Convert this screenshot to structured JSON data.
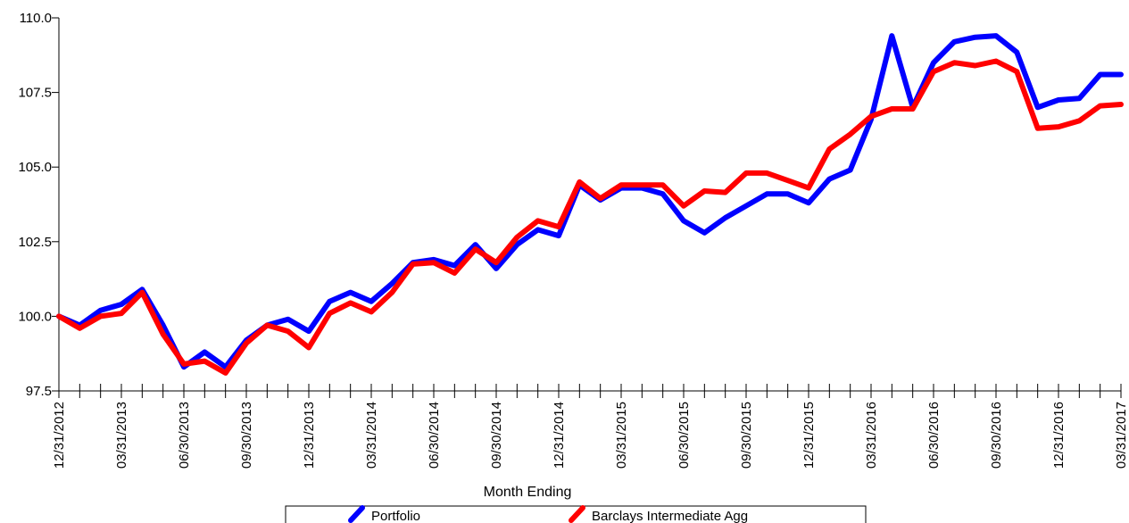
{
  "chart_data": {
    "type": "line",
    "xlabel": "Month Ending",
    "ylabel": "",
    "ylim": [
      97.5,
      110.0
    ],
    "yticks": [
      97.5,
      100.0,
      102.5,
      105.0,
      107.5,
      110.0
    ],
    "ytick_labels": [
      "97.5",
      "100.0",
      "102.5",
      "105.0",
      "107.5",
      "110.0"
    ],
    "x": [
      "12/31/2012",
      "01/31/2013",
      "02/28/2013",
      "03/31/2013",
      "04/30/2013",
      "05/31/2013",
      "06/30/2013",
      "07/31/2013",
      "08/31/2013",
      "09/30/2013",
      "10/31/2013",
      "11/30/2013",
      "12/31/2013",
      "01/31/2014",
      "02/28/2014",
      "03/31/2014",
      "04/30/2014",
      "05/31/2014",
      "06/30/2014",
      "07/31/2014",
      "08/31/2014",
      "09/30/2014",
      "10/31/2014",
      "11/30/2014",
      "12/31/2014",
      "01/31/2015",
      "02/28/2015",
      "03/31/2015",
      "04/30/2015",
      "05/31/2015",
      "06/30/2015",
      "07/31/2015",
      "08/31/2015",
      "09/30/2015",
      "10/31/2015",
      "11/30/2015",
      "12/31/2015",
      "01/31/2016",
      "02/29/2016",
      "03/31/2016",
      "04/30/2016",
      "05/31/2016",
      "06/30/2016",
      "07/31/2016",
      "08/31/2016",
      "09/30/2016",
      "10/31/2016",
      "11/30/2016",
      "12/31/2016",
      "01/31/2017",
      "02/28/2017",
      "03/31/2017"
    ],
    "xtick_labels": [
      "12/31/2012",
      "03/31/2013",
      "06/30/2013",
      "09/30/2013",
      "12/31/2013",
      "03/31/2014",
      "06/30/2014",
      "09/30/2014",
      "12/31/2014",
      "03/31/2015",
      "06/30/2015",
      "09/30/2015",
      "12/31/2015",
      "03/31/2016",
      "06/30/2016",
      "09/30/2016",
      "12/31/2016",
      "03/31/2017"
    ],
    "grid": false,
    "legend_placement": "bottom-center",
    "series": [
      {
        "name": "Portfolio",
        "color": "#0000ff",
        "values": [
          100.0,
          99.7,
          100.2,
          100.4,
          100.9,
          99.7,
          98.3,
          98.8,
          98.3,
          99.2,
          99.7,
          99.9,
          99.5,
          100.5,
          100.8,
          100.5,
          101.1,
          101.8,
          101.9,
          101.7,
          102.4,
          101.6,
          102.4,
          102.9,
          102.7,
          104.4,
          103.9,
          104.3,
          104.3,
          104.1,
          103.2,
          102.8,
          103.3,
          103.7,
          104.1,
          104.1,
          103.8,
          104.6,
          104.9,
          106.6,
          109.4,
          107.0,
          108.5,
          109.2,
          109.35,
          109.4,
          108.85,
          107.0,
          107.25,
          107.3,
          108.1,
          108.1
        ]
      },
      {
        "name": "Barclays Intermediate Agg",
        "color": "#ff0000",
        "values": [
          100.0,
          99.6,
          100.0,
          100.1,
          100.8,
          99.4,
          98.4,
          98.5,
          98.1,
          99.1,
          99.7,
          99.5,
          98.95,
          100.1,
          100.45,
          100.15,
          100.8,
          101.75,
          101.8,
          101.45,
          102.25,
          101.8,
          102.65,
          103.2,
          103.0,
          104.5,
          103.95,
          104.4,
          104.4,
          104.4,
          103.7,
          104.2,
          104.15,
          104.8,
          104.8,
          104.55,
          104.3,
          105.6,
          106.1,
          106.7,
          106.95,
          106.95,
          108.2,
          108.5,
          108.4,
          108.55,
          108.2,
          106.3,
          106.35,
          106.55,
          107.05,
          107.1
        ]
      }
    ]
  }
}
